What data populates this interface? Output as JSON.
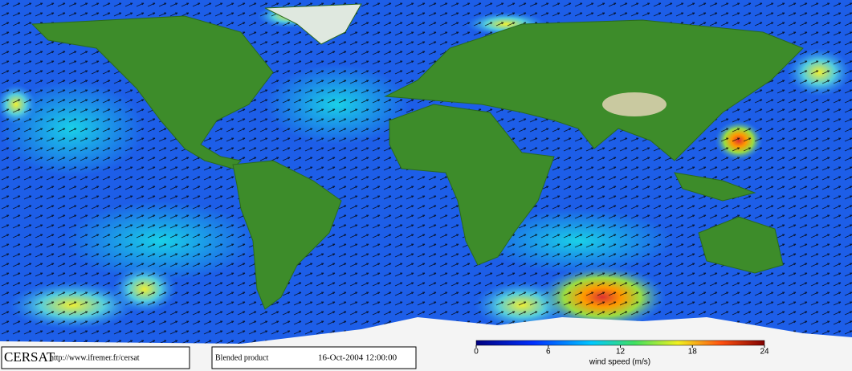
{
  "footer": {
    "logo": "CERSAT",
    "url": "http://www.ifremer.fr/cersat",
    "product": "Blended product",
    "date": "16-Oct-2004 12:00:00"
  },
  "colorbar": {
    "label": "wind speed (m/s)",
    "lim": [
      0,
      24
    ],
    "ticks": [
      0,
      6,
      12,
      18,
      24
    ]
  }
}
